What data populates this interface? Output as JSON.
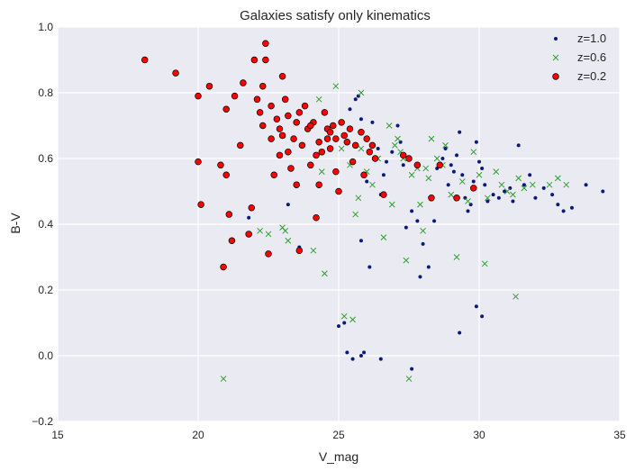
{
  "chart_data": {
    "type": "scatter",
    "title": "Galaxies satisfy only kinematics",
    "xlabel": "V_mag",
    "ylabel": "B-V",
    "xlim": [
      15,
      35
    ],
    "ylim": [
      -0.2,
      1.0
    ],
    "xticks": [
      "15",
      "20",
      "25",
      "30",
      "35"
    ],
    "yticks": [
      "−0.2",
      "0.0",
      "0.2",
      "0.4",
      "0.6",
      "0.8",
      "1.0"
    ],
    "grid": true,
    "legend_position": "top-right",
    "series": [
      {
        "name": "z=1.0",
        "marker": "dot",
        "color": "#0b1a7a",
        "points": [
          [
            21.8,
            0.42
          ],
          [
            23.2,
            0.46
          ],
          [
            23.6,
            0.33
          ],
          [
            24.6,
            0.66
          ],
          [
            25.0,
            0.09
          ],
          [
            25.2,
            0.1
          ],
          [
            25.3,
            0.01
          ],
          [
            25.4,
            0.75
          ],
          [
            25.5,
            -0.01
          ],
          [
            25.6,
            0.78
          ],
          [
            25.7,
            0.79
          ],
          [
            25.8,
            0.72
          ],
          [
            25.8,
            0.35
          ],
          [
            25.8,
            0.0
          ],
          [
            26.0,
            0.53
          ],
          [
            26.1,
            0.27
          ],
          [
            26.2,
            0.71
          ],
          [
            26.4,
            0.63
          ],
          [
            26.5,
            0.49
          ],
          [
            26.6,
            0.55
          ],
          [
            26.7,
            0.59
          ],
          [
            26.9,
            0.62
          ],
          [
            27.1,
            0.7
          ],
          [
            27.2,
            0.65
          ],
          [
            27.3,
            0.58
          ],
          [
            27.4,
            0.39
          ],
          [
            27.6,
            0.44
          ],
          [
            27.8,
            0.41
          ],
          [
            27.9,
            0.24
          ],
          [
            28.0,
            0.34
          ],
          [
            28.2,
            0.27
          ],
          [
            28.4,
            0.41
          ],
          [
            28.5,
            0.57
          ],
          [
            28.7,
            0.6
          ],
          [
            28.8,
            0.63
          ],
          [
            28.9,
            0.52
          ],
          [
            29.0,
            0.58
          ],
          [
            29.1,
            0.56
          ],
          [
            29.2,
            0.61
          ],
          [
            29.3,
            0.68
          ],
          [
            29.4,
            0.55
          ],
          [
            29.5,
            0.48
          ],
          [
            29.6,
            0.44
          ],
          [
            29.7,
            0.46
          ],
          [
            29.8,
            0.53
          ],
          [
            29.9,
            0.65
          ],
          [
            30.0,
            0.59
          ],
          [
            30.1,
            0.57
          ],
          [
            30.2,
            0.52
          ],
          [
            30.3,
            0.47
          ],
          [
            30.5,
            0.49
          ],
          [
            30.7,
            0.48
          ],
          [
            30.9,
            0.5
          ],
          [
            31.1,
            0.51
          ],
          [
            31.2,
            0.47
          ],
          [
            31.4,
            0.64
          ],
          [
            31.6,
            0.52
          ],
          [
            31.8,
            0.55
          ],
          [
            32.0,
            0.48
          ],
          [
            32.3,
            0.51
          ],
          [
            32.6,
            0.49
          ],
          [
            32.8,
            0.46
          ],
          [
            33.0,
            0.44
          ],
          [
            33.3,
            0.45
          ],
          [
            33.8,
            0.52
          ],
          [
            34.4,
            0.5
          ],
          [
            29.9,
            0.15
          ],
          [
            30.1,
            0.12
          ],
          [
            29.3,
            0.07
          ],
          [
            27.6,
            -0.04
          ],
          [
            26.5,
            -0.01
          ],
          [
            25.9,
            0.01
          ]
        ]
      },
      {
        "name": "z=0.6",
        "marker": "x",
        "color": "#2e9e2e",
        "points": [
          [
            20.9,
            -0.07
          ],
          [
            22.2,
            0.38
          ],
          [
            22.5,
            0.37
          ],
          [
            23.0,
            0.39
          ],
          [
            23.1,
            0.38
          ],
          [
            23.2,
            0.35
          ],
          [
            24.1,
            0.32
          ],
          [
            24.3,
            0.78
          ],
          [
            24.5,
            0.25
          ],
          [
            24.4,
            0.56
          ],
          [
            24.9,
            0.82
          ],
          [
            25.1,
            0.63
          ],
          [
            25.2,
            0.12
          ],
          [
            25.4,
            0.58
          ],
          [
            25.5,
            0.11
          ],
          [
            25.6,
            0.43
          ],
          [
            25.7,
            0.48
          ],
          [
            25.8,
            0.8
          ],
          [
            25.8,
            0.63
          ],
          [
            26.0,
            0.56
          ],
          [
            26.2,
            0.52
          ],
          [
            26.4,
            0.6
          ],
          [
            26.6,
            0.36
          ],
          [
            26.8,
            0.7
          ],
          [
            26.9,
            0.46
          ],
          [
            27.0,
            0.64
          ],
          [
            27.1,
            0.66
          ],
          [
            27.2,
            0.62
          ],
          [
            27.3,
            0.6
          ],
          [
            27.4,
            0.29
          ],
          [
            27.5,
            -0.07
          ],
          [
            27.6,
            0.55
          ],
          [
            27.8,
            0.57
          ],
          [
            27.9,
            0.46
          ],
          [
            28.0,
            0.38
          ],
          [
            28.1,
            0.57
          ],
          [
            28.2,
            0.54
          ],
          [
            28.3,
            0.66
          ],
          [
            28.5,
            0.6
          ],
          [
            28.7,
            0.58
          ],
          [
            28.8,
            0.64
          ],
          [
            29.0,
            0.49
          ],
          [
            29.2,
            0.3
          ],
          [
            29.4,
            0.53
          ],
          [
            29.6,
            0.47
          ],
          [
            29.8,
            0.62
          ],
          [
            30.0,
            0.55
          ],
          [
            30.2,
            0.28
          ],
          [
            30.3,
            0.48
          ],
          [
            30.6,
            0.56
          ],
          [
            30.8,
            0.52
          ],
          [
            31.0,
            0.5
          ],
          [
            31.2,
            0.49
          ],
          [
            31.3,
            0.18
          ],
          [
            31.4,
            0.54
          ],
          [
            31.6,
            0.51
          ],
          [
            31.9,
            0.52
          ],
          [
            32.5,
            0.52
          ],
          [
            32.8,
            0.54
          ],
          [
            33.1,
            0.52
          ]
        ]
      },
      {
        "name": "z=0.2",
        "marker": "circle",
        "color": "#ff0000",
        "points": [
          [
            18.1,
            0.9
          ],
          [
            19.2,
            0.86
          ],
          [
            20.0,
            0.79
          ],
          [
            20.0,
            0.59
          ],
          [
            20.1,
            0.46
          ],
          [
            20.4,
            0.82
          ],
          [
            20.8,
            0.58
          ],
          [
            20.9,
            0.27
          ],
          [
            21.0,
            0.75
          ],
          [
            21.0,
            0.55
          ],
          [
            21.1,
            0.43
          ],
          [
            21.2,
            0.35
          ],
          [
            21.3,
            0.79
          ],
          [
            21.5,
            0.64
          ],
          [
            21.6,
            0.83
          ],
          [
            21.8,
            0.37
          ],
          [
            21.9,
            0.45
          ],
          [
            22.0,
            0.9
          ],
          [
            22.1,
            0.78
          ],
          [
            22.2,
            0.74
          ],
          [
            22.3,
            0.7
          ],
          [
            22.4,
            0.95
          ],
          [
            22.4,
            0.9
          ],
          [
            22.5,
            0.31
          ],
          [
            22.6,
            0.66
          ],
          [
            22.7,
            0.55
          ],
          [
            22.8,
            0.72
          ],
          [
            22.9,
            0.61
          ],
          [
            23.0,
            0.85
          ],
          [
            23.0,
            0.67
          ],
          [
            23.1,
            0.78
          ],
          [
            23.2,
            0.73
          ],
          [
            23.3,
            0.57
          ],
          [
            23.4,
            0.66
          ],
          [
            23.5,
            0.71
          ],
          [
            23.5,
            0.52
          ],
          [
            23.6,
            0.32
          ],
          [
            23.7,
            0.64
          ],
          [
            23.8,
            0.76
          ],
          [
            23.9,
            0.69
          ],
          [
            24.0,
            0.58
          ],
          [
            24.1,
            0.71
          ],
          [
            24.2,
            0.61
          ],
          [
            24.2,
            0.42
          ],
          [
            24.3,
            0.65
          ],
          [
            24.3,
            0.52
          ],
          [
            24.5,
            0.74
          ],
          [
            24.6,
            0.69
          ],
          [
            24.6,
            0.66
          ],
          [
            24.7,
            0.63
          ],
          [
            24.8,
            0.7
          ],
          [
            24.9,
            0.56
          ],
          [
            25.0,
            0.5
          ],
          [
            25.1,
            0.71
          ],
          [
            25.2,
            0.67
          ],
          [
            25.3,
            0.65
          ],
          [
            25.4,
            0.69
          ],
          [
            25.5,
            0.59
          ],
          [
            25.6,
            0.64
          ],
          [
            25.8,
            0.68
          ],
          [
            25.9,
            0.55
          ],
          [
            26.0,
            0.66
          ],
          [
            26.1,
            0.62
          ],
          [
            26.2,
            0.64
          ],
          [
            26.3,
            0.6
          ],
          [
            26.6,
            0.49
          ],
          [
            27.3,
            0.61
          ],
          [
            27.5,
            0.6
          ],
          [
            27.8,
            0.58
          ],
          [
            28.3,
            0.48
          ],
          [
            28.6,
            0.58
          ],
          [
            29.2,
            0.48
          ],
          [
            29.8,
            0.51
          ],
          [
            22.3,
            0.82
          ],
          [
            22.6,
            0.76
          ],
          [
            22.9,
            0.69
          ],
          [
            23.2,
            0.62
          ],
          [
            23.6,
            0.74
          ],
          [
            24.0,
            0.7
          ],
          [
            24.4,
            0.62
          ],
          [
            24.7,
            0.68
          ],
          [
            24.9,
            0.66
          ]
        ]
      }
    ]
  }
}
